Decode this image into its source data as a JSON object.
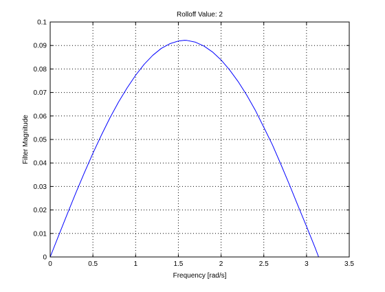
{
  "chart_data": {
    "type": "line",
    "title": "Rolloff Value: 2",
    "xlabel": "Frequency [rad/s]",
    "ylabel": "Filter Magnitude",
    "xlim": [
      0,
      3.5
    ],
    "ylim": [
      0,
      0.1
    ],
    "grid": true,
    "grid_style": "dotted",
    "x_ticks": [
      "0",
      "0.5",
      "1",
      "1.5",
      "2",
      "2.5",
      "3",
      "3.5"
    ],
    "y_ticks": [
      "0",
      "0.01",
      "0.02",
      "0.03",
      "0.04",
      "0.05",
      "0.06",
      "0.07",
      "0.08",
      "0.09",
      "0.1"
    ],
    "series": [
      {
        "color": "#0000ff",
        "x": [
          0,
          0.1,
          0.2,
          0.3,
          0.4,
          0.5,
          0.6,
          0.7,
          0.8,
          0.9,
          1.0,
          1.1,
          1.2,
          1.3,
          1.4,
          1.5,
          1.5708,
          1.6,
          1.7,
          1.8,
          1.9,
          2.0,
          2.1,
          2.2,
          2.3,
          2.4,
          2.5,
          2.6,
          2.7,
          2.8,
          2.9,
          3.0,
          3.1,
          3.1416
        ],
        "y": [
          0,
          0.00919,
          0.0183,
          0.02723,
          0.03585,
          0.04413,
          0.0519,
          0.05925,
          0.06594,
          0.07193,
          0.07734,
          0.082,
          0.0858,
          0.08876,
          0.09075,
          0.0919,
          0.0922,
          0.09216,
          0.0914,
          0.08974,
          0.08723,
          0.08385,
          0.07959,
          0.07463,
          0.06889,
          0.06248,
          0.05518,
          0.04778,
          0.0394,
          0.03075,
          0.02179,
          0.01298,
          0.00395,
          0
        ]
      }
    ]
  }
}
